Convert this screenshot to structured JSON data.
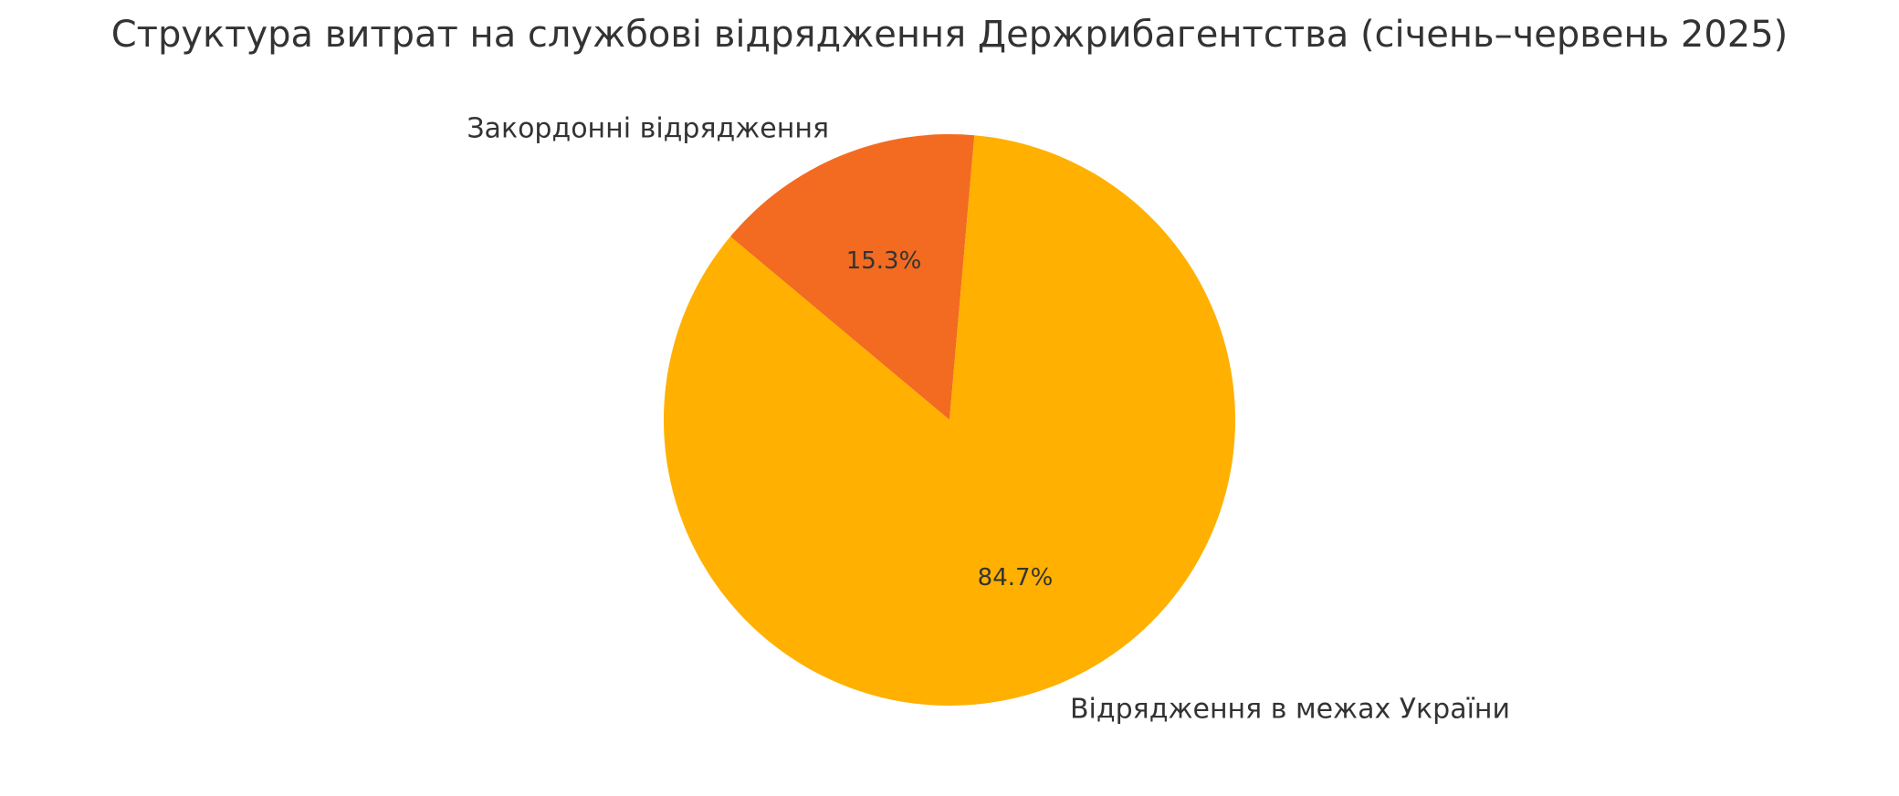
{
  "chart_data": {
    "type": "pie",
    "title": "Структура витрат на службові відрядження Держрибагентства (січень–червень 2025)",
    "categories": [
      "Закордонні відрядження",
      "Відрядження в межах України"
    ],
    "values": [
      15.3,
      84.7
    ],
    "value_labels": [
      "15.3%",
      "84.7%"
    ],
    "colors": [
      "#f26b21",
      "#ffb000"
    ]
  }
}
